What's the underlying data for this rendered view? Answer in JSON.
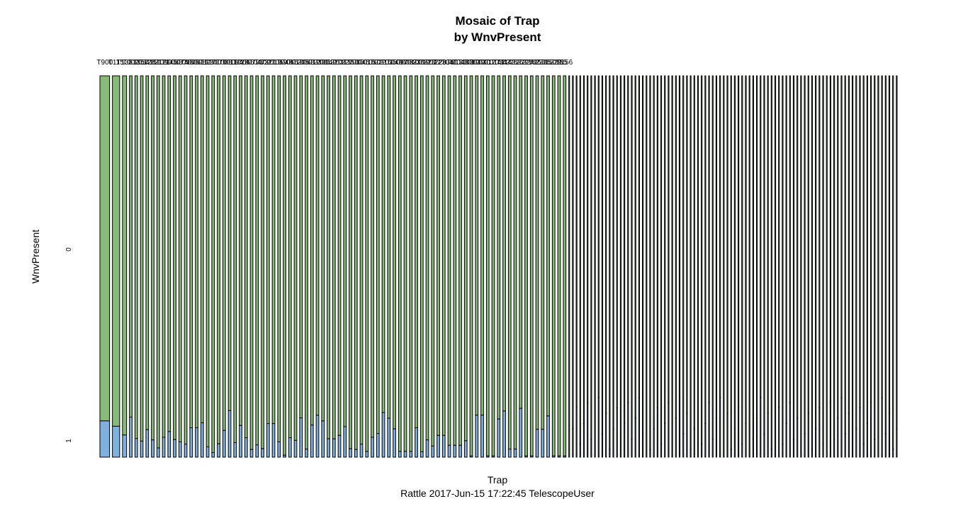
{
  "chart_data": {
    "type": "mosaic",
    "title": "Mosaic of Trap",
    "subtitle": "by WnvPresent",
    "xlabel": "Trap",
    "ylabel": "WnvPresent",
    "caption": "Rattle 2017-Jun-15 17:22:45 TelescopeUser",
    "y_levels": [
      "0",
      "1"
    ],
    "colors": {
      "level_0": "#88bb77",
      "level_1": "#7eb0e0",
      "border": "#000000"
    },
    "traps": [
      {
        "label": "T900",
        "weight": 40,
        "p1": 0.095
      },
      {
        "label": "T115",
        "weight": 30,
        "p1": 0.081
      },
      {
        "label": "T138",
        "weight": 17,
        "p1": 0.058
      },
      {
        "label": "T002",
        "weight": 11,
        "p1": 0.105
      },
      {
        "label": "T135",
        "weight": 11,
        "p1": 0.049
      },
      {
        "label": "T054",
        "weight": 11,
        "p1": 0.042
      },
      {
        "label": "T128",
        "weight": 11,
        "p1": 0.072
      },
      {
        "label": "T151",
        "weight": 11,
        "p1": 0.045
      },
      {
        "label": "T212",
        "weight": 11,
        "p1": 0.024
      },
      {
        "label": "T090",
        "weight": 11,
        "p1": 0.052
      },
      {
        "label": "T145",
        "weight": 11,
        "p1": 0.067
      },
      {
        "label": "T083",
        "weight": 11,
        "p1": 0.046
      },
      {
        "label": "T074",
        "weight": 11,
        "p1": 0.04
      },
      {
        "label": "T096",
        "weight": 11,
        "p1": 0.034
      },
      {
        "label": "T006",
        "weight": 11,
        "p1": 0.077
      },
      {
        "label": "T061",
        "weight": 11,
        "p1": 0.077
      },
      {
        "label": "T082",
        "weight": 11,
        "p1": 0.09
      },
      {
        "label": "T127",
        "weight": 11,
        "p1": 0.027
      },
      {
        "label": "T200",
        "weight": 11,
        "p1": 0.012
      },
      {
        "label": "T070",
        "weight": 11,
        "p1": 0.035
      },
      {
        "label": "T003",
        "weight": 11,
        "p1": 0.07
      },
      {
        "label": "T011",
        "weight": 11,
        "p1": 0.122
      },
      {
        "label": "T094",
        "weight": 11,
        "p1": 0.038
      },
      {
        "label": "T028",
        "weight": 11,
        "p1": 0.083
      },
      {
        "label": "T066",
        "weight": 11,
        "p1": 0.051
      },
      {
        "label": "T079",
        "weight": 11,
        "p1": 0.02
      },
      {
        "label": "T047",
        "weight": 11,
        "p1": 0.032
      },
      {
        "label": "T102",
        "weight": 11,
        "p1": 0.022
      },
      {
        "label": "T221",
        "weight": 11,
        "p1": 0.088
      },
      {
        "label": "T019",
        "weight": 11,
        "p1": 0.088
      },
      {
        "label": "T059",
        "weight": 11,
        "p1": 0.04
      },
      {
        "label": "T048",
        "weight": 11,
        "p1": 0.005
      },
      {
        "label": "T065",
        "weight": 11,
        "p1": 0.051
      },
      {
        "label": "T010",
        "weight": 11,
        "p1": 0.044
      },
      {
        "label": "T205",
        "weight": 11,
        "p1": 0.103
      },
      {
        "label": "T063",
        "weight": 11,
        "p1": 0.021
      },
      {
        "label": "T012",
        "weight": 11,
        "p1": 0.084
      },
      {
        "label": "T233",
        "weight": 11,
        "p1": 0.11
      },
      {
        "label": "T081",
        "weight": 11,
        "p1": 0.095
      },
      {
        "label": "T142",
        "weight": 11,
        "p1": 0.048
      },
      {
        "label": "T220",
        "weight": 11,
        "p1": 0.048
      },
      {
        "label": "T031",
        "weight": 11,
        "p1": 0.057
      },
      {
        "label": "T227",
        "weight": 11,
        "p1": 0.08
      },
      {
        "label": "T158",
        "weight": 11,
        "p1": 0.022
      },
      {
        "label": "T036",
        "weight": 11,
        "p1": 0.02
      },
      {
        "label": "T045",
        "weight": 11,
        "p1": 0.034
      },
      {
        "label": "T016",
        "weight": 11,
        "p1": 0.015
      },
      {
        "label": "T050",
        "weight": 11,
        "p1": 0.052
      },
      {
        "label": "T022",
        "weight": 11,
        "p1": 0.062
      },
      {
        "label": "T216",
        "weight": 11,
        "p1": 0.117
      },
      {
        "label": "T035",
        "weight": 11,
        "p1": 0.102
      },
      {
        "label": "T049",
        "weight": 11,
        "p1": 0.074
      },
      {
        "label": "T097",
        "weight": 11,
        "p1": 0.015
      },
      {
        "label": "T008",
        "weight": 11,
        "p1": 0.015
      },
      {
        "label": "T060",
        "weight": 11,
        "p1": 0.015
      },
      {
        "label": "T230",
        "weight": 11,
        "p1": 0.077
      },
      {
        "label": "T092",
        "weight": 11,
        "p1": 0.014
      },
      {
        "label": "T223",
        "weight": 11,
        "p1": 0.045
      },
      {
        "label": "T027",
        "weight": 11,
        "p1": 0.029
      },
      {
        "label": "T228",
        "weight": 11,
        "p1": 0.057
      },
      {
        "label": "T233b",
        "weight": 11,
        "p1": 0.057
      },
      {
        "label": "T041",
        "weight": 11,
        "p1": 0.031
      },
      {
        "label": "T013",
        "weight": 11,
        "p1": 0.031
      },
      {
        "label": "T043",
        "weight": 11,
        "p1": 0.031
      },
      {
        "label": "T103",
        "weight": 11,
        "p1": 0.043
      },
      {
        "label": "T089",
        "weight": 11,
        "p1": 0.003
      },
      {
        "label": "T039",
        "weight": 11,
        "p1": 0.11
      },
      {
        "label": "T030",
        "weight": 11,
        "p1": 0.11
      },
      {
        "label": "T017",
        "weight": 11,
        "p1": 0.003
      },
      {
        "label": "T014",
        "weight": 11,
        "p1": 0.003
      },
      {
        "label": "T034",
        "weight": 11,
        "p1": 0.1
      },
      {
        "label": "T114",
        "weight": 11,
        "p1": 0.121
      },
      {
        "label": "T225",
        "weight": 11,
        "p1": 0.021
      },
      {
        "label": "T226",
        "weight": 11,
        "p1": 0.021
      },
      {
        "label": "T222",
        "weight": 11,
        "p1": 0.128
      },
      {
        "label": "T224",
        "weight": 11,
        "p1": 0.003
      },
      {
        "label": "T162",
        "weight": 11,
        "p1": 0.003
      },
      {
        "label": "T153",
        "weight": 11,
        "p1": 0.073
      },
      {
        "label": "T235",
        "weight": 11,
        "p1": 0.073
      },
      {
        "label": "T150",
        "weight": 11,
        "p1": 0.108
      },
      {
        "label": "T229",
        "weight": 11,
        "p1": 0.003
      },
      {
        "label": "T155",
        "weight": 11,
        "p1": 0.003
      },
      {
        "label": "T156",
        "weight": 11,
        "p1": 0.003
      }
    ],
    "narrow_trap_count": 90,
    "narrow_trap_note": "remaining traps are drawn as very narrow columns with illegible, overlapping tick labels"
  }
}
